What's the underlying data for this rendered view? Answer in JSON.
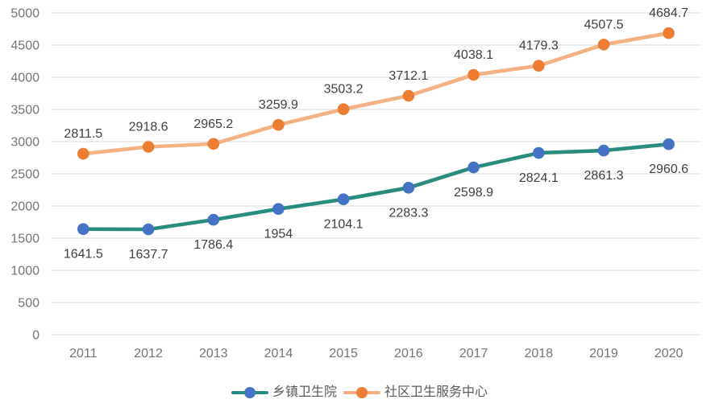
{
  "chart_data": {
    "type": "line",
    "categories": [
      "2011",
      "2012",
      "2013",
      "2014",
      "2015",
      "2016",
      "2017",
      "2018",
      "2019",
      "2020"
    ],
    "series": [
      {
        "name": "乡镇卫生院",
        "values": [
          1641.5,
          1637.7,
          1786.4,
          1954,
          2104.1,
          2283.3,
          2598.9,
          2824.1,
          2861.3,
          2960.6
        ],
        "line_color": "#2A8C7E",
        "marker_color": "#4472C4",
        "label_position": "below"
      },
      {
        "name": "社区卫生服务中心",
        "values": [
          2811.5,
          2918.6,
          2965.2,
          3259.9,
          3503.2,
          3712.1,
          4038.1,
          4179.3,
          4507.5,
          4684.7
        ],
        "line_color": "#F4B183",
        "marker_color": "#ED7D31",
        "label_position": "above"
      }
    ],
    "title": "",
    "xlabel": "",
    "ylabel": "",
    "y_axis": {
      "min": 0,
      "max": 5000,
      "step": 500
    },
    "grid": true,
    "legend_position": "bottom",
    "style": {
      "gridline_color": "#D9D9D9",
      "axis_label_color": "#757575",
      "data_label_color": "#404040",
      "legend_text_color": "#595959",
      "background_color": "#FFFFFF"
    }
  }
}
